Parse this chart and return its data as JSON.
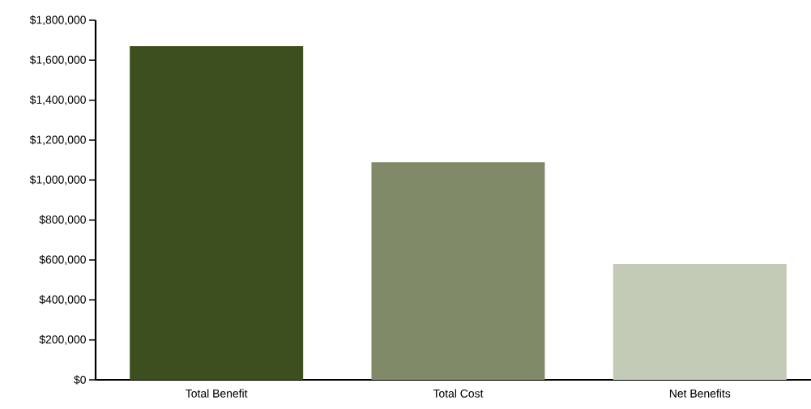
{
  "chart_data": {
    "type": "bar",
    "categories": [
      "Total Benefit",
      "Total Cost",
      "Net Benefits"
    ],
    "values": [
      1670000,
      1090000,
      580000
    ],
    "colors": [
      "#3d4f1f",
      "#808a69",
      "#c3cab5"
    ],
    "ylim": [
      0,
      1800000
    ],
    "yticks": [
      {
        "value": 0,
        "label": "$0"
      },
      {
        "value": 200000,
        "label": "$200,000"
      },
      {
        "value": 400000,
        "label": "$400,000"
      },
      {
        "value": 600000,
        "label": "$600,000"
      },
      {
        "value": 800000,
        "label": "$800,000"
      },
      {
        "value": 1000000,
        "label": "$1,000,000"
      },
      {
        "value": 1200000,
        "label": "$1,200,000"
      },
      {
        "value": 1400000,
        "label": "$1,400,000"
      },
      {
        "value": 1600000,
        "label": "$1,600,000"
      },
      {
        "value": 1800000,
        "label": "$1,800,000"
      }
    ],
    "grid": false
  }
}
